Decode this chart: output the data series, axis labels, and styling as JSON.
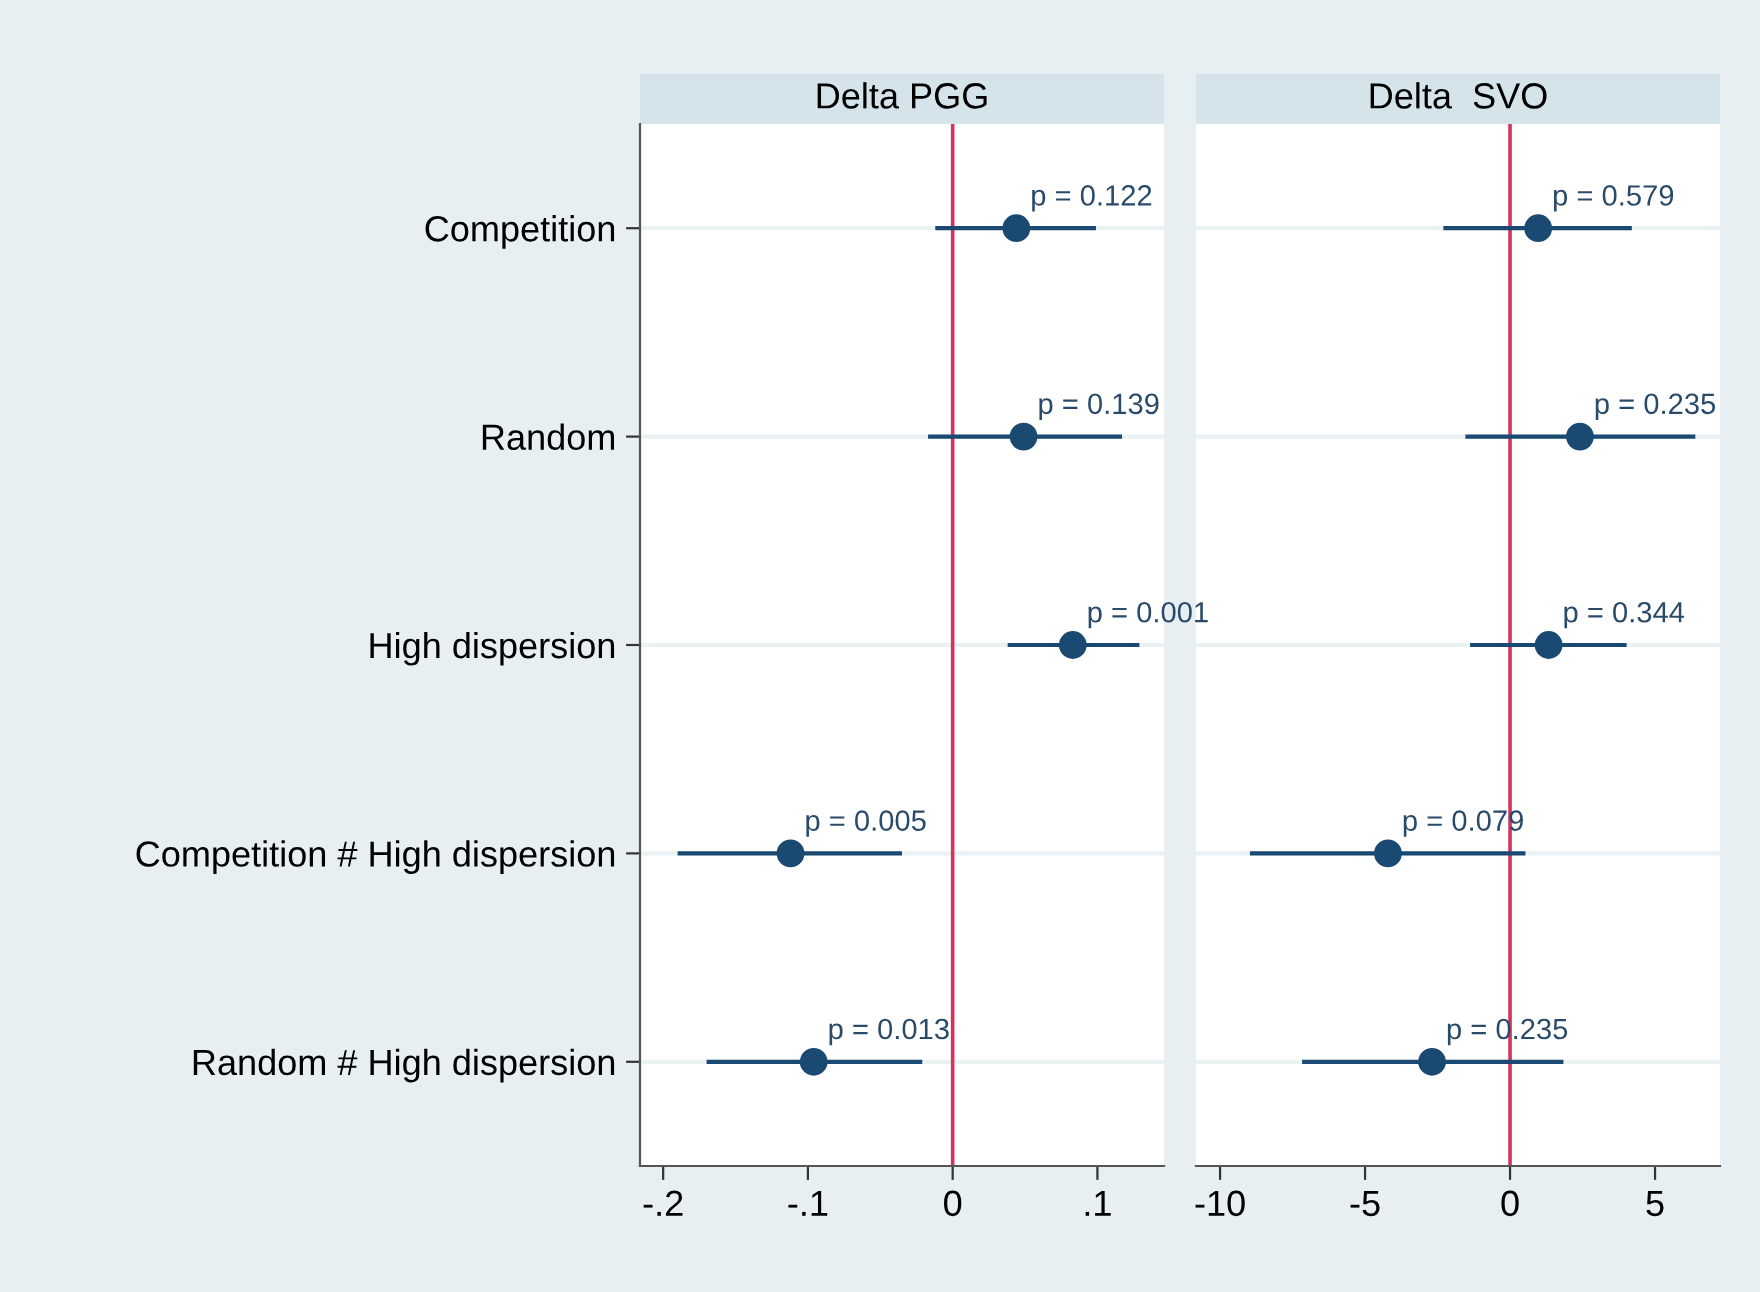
{
  "chart_data": [
    {
      "type": "scatter",
      "orientation": "horizontal",
      "title": "Delta PGG",
      "categories": [
        "Competition",
        "Random",
        "High dispersion",
        "Competition # High dispersion",
        "Random # High dispersion"
      ],
      "values": [
        0.044,
        0.049,
        0.083,
        -0.112,
        -0.096
      ],
      "errors": [
        [
          -0.012,
          0.099
        ],
        [
          -0.017,
          0.117
        ],
        [
          0.038,
          0.129
        ],
        [
          -0.19,
          -0.035
        ],
        [
          -0.17,
          -0.021
        ]
      ],
      "annotations": [
        {
          "text": "p = 0.122",
          "x": 0.044,
          "y": "Competition"
        },
        {
          "text": "p = 0.139",
          "x": 0.049,
          "y": "Random"
        },
        {
          "text": "p = 0.001",
          "x": 0.083,
          "y": "High dispersion"
        },
        {
          "text": "p = 0.005",
          "x": -0.112,
          "y": "Competition # High dispersion"
        },
        {
          "text": "p = 0.013",
          "x": -0.096,
          "y": "Random # High dispersion"
        }
      ],
      "color": "#1a4a72",
      "marker": "circle",
      "xlim": [
        -0.216,
        0.146
      ],
      "xticks": [
        {
          "value": -0.2,
          "label": "-.2"
        },
        {
          "value": -0.1,
          "label": "-.1"
        },
        0,
        {
          "value": 0.1,
          "label": ".1"
        }
      ],
      "ref_lines": [
        {
          "axis": "x",
          "value": 0,
          "color": "#d6335c"
        }
      ],
      "grid": "y"
    },
    {
      "type": "scatter",
      "orientation": "horizontal",
      "title": "Delta  SVO",
      "categories": [
        "Competition",
        "Random",
        "High dispersion",
        "Competition # High dispersion",
        "Random # High dispersion"
      ],
      "values": [
        0.97,
        2.41,
        1.33,
        -4.21,
        -2.69
      ],
      "errors": [
        [
          -2.3,
          4.2
        ],
        [
          -1.54,
          6.39
        ],
        [
          -1.38,
          4.02
        ],
        [
          -8.97,
          0.53
        ],
        [
          -7.17,
          1.84
        ]
      ],
      "annotations": [
        {
          "text": "p = 0.579",
          "x": 0.97,
          "y": "Competition"
        },
        {
          "text": "p = 0.235",
          "x": 2.41,
          "y": "Random"
        },
        {
          "text": "p = 0.344",
          "x": 1.33,
          "y": "High dispersion"
        },
        {
          "text": "p = 0.079",
          "x": -4.21,
          "y": "Competition # High dispersion"
        },
        {
          "text": "p = 0.235",
          "x": -2.69,
          "y": "Random # High dispersion"
        }
      ],
      "color": "#1a4a72",
      "marker": "circle",
      "xlim": [
        -10.83,
        7.24
      ],
      "xticks": [
        -10,
        -5,
        0,
        5
      ],
      "ref_lines": [
        {
          "axis": "x",
          "value": 0,
          "color": "#d6335c"
        }
      ],
      "grid": "y",
      "tick_labels": "x"
    }
  ]
}
